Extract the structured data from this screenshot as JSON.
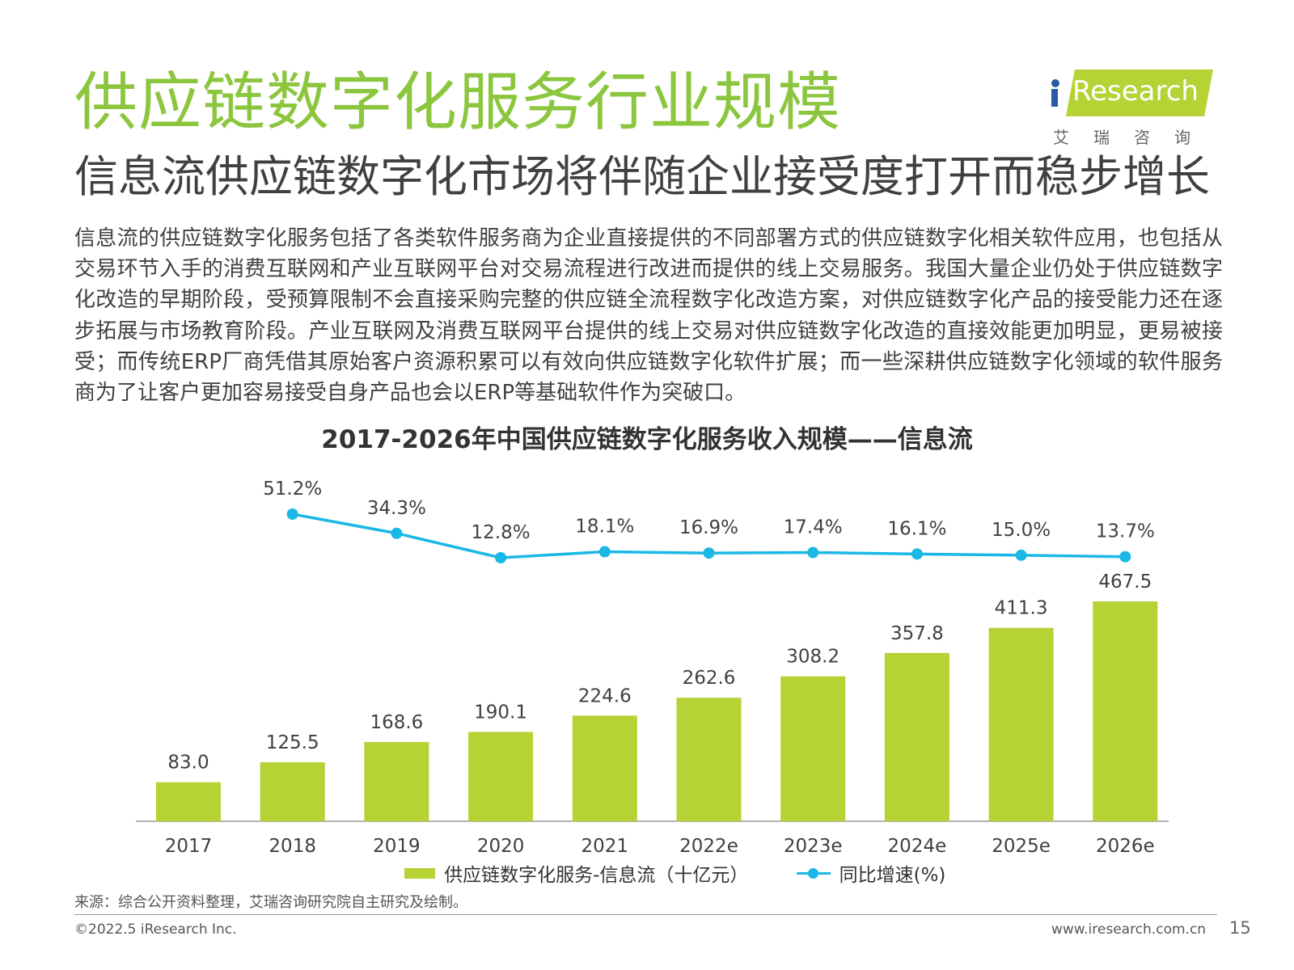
{
  "header": {
    "title": "供应链数字化服务行业规模",
    "subtitle": "信息流供应链数字化市场将伴随企业接受度打开而稳步增长",
    "logo_word": "Research",
    "logo_cn": "艾瑞咨询"
  },
  "body_text": "信息流的供应链数字化服务包括了各类软件服务商为企业直接提供的不同部署方式的供应链数字化相关软件应用，也包括从交易环节入手的消费互联网和产业互联网平台对交易流程进行改进而提供的线上交易服务。我国大量企业仍处于供应链数字化改造的早期阶段，受预算限制不会直接采购完整的供应链全流程数字化改造方案，对供应链数字化产品的接受能力还在逐步拓展与市场教育阶段。产业互联网及消费互联网平台提供的线上交易对供应链数字化改造的直接效能更加明显，更易被接受；而传统ERP厂商凭借其原始客户资源积累可以有效向供应链数字化软件扩展；而一些深耕供应链数字化领域的软件服务商为了让客户更加容易接受自身产品也会以ERP等基础软件作为突破口。",
  "chart_data": {
    "type": "bar",
    "title": "2017-2026年中国供应链数字化服务收入规模——信息流",
    "categories": [
      "2017",
      "2018",
      "2019",
      "2020",
      "2021",
      "2022e",
      "2023e",
      "2024e",
      "2025e",
      "2026e"
    ],
    "series": [
      {
        "name": "供应链数字化服务-信息流（十亿元）",
        "type": "bar",
        "color": "#b5d334",
        "values": [
          83.0,
          125.5,
          168.6,
          190.1,
          224.6,
          262.6,
          308.2,
          357.8,
          411.3,
          467.5
        ],
        "labels": [
          "83.0",
          "125.5",
          "168.6",
          "190.1",
          "224.6",
          "262.6",
          "308.2",
          "357.8",
          "411.3",
          "467.5"
        ]
      },
      {
        "name": "同比增速(%)",
        "type": "line",
        "color": "#1bb8e6",
        "values": [
          null,
          51.2,
          34.3,
          12.8,
          18.1,
          16.9,
          17.4,
          16.1,
          15.0,
          13.7
        ],
        "labels": [
          "",
          "51.2%",
          "34.3%",
          "12.8%",
          "18.1%",
          "16.9%",
          "17.4%",
          "16.1%",
          "15.0%",
          "13.7%"
        ]
      }
    ],
    "legend_position": "bottom",
    "grid": false
  },
  "footer": {
    "source": "来源：综合公开资料整理，艾瑞咨询研究院自主研究及绘制。",
    "copyright": "©2022.5 iResearch Inc.",
    "website": "www.iresearch.com.cn",
    "page_number": "15"
  }
}
